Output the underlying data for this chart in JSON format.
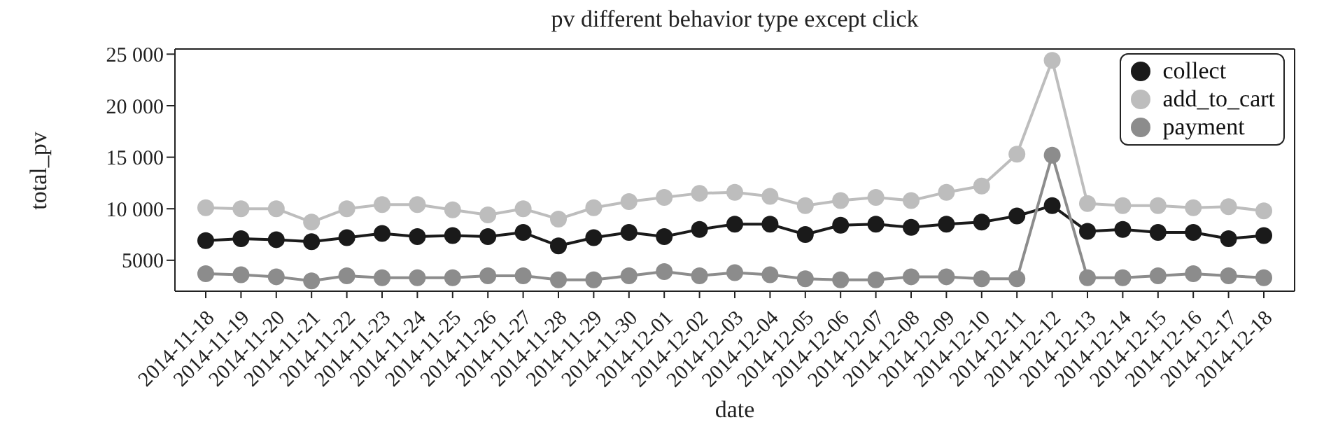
{
  "chart_data": {
    "type": "line",
    "title": "pv different behavior type except click",
    "xlabel": "date",
    "ylabel": "total_pv",
    "categories": [
      "2014-11-18",
      "2014-11-19",
      "2014-11-20",
      "2014-11-21",
      "2014-11-22",
      "2014-11-23",
      "2014-11-24",
      "2014-11-25",
      "2014-11-26",
      "2014-11-27",
      "2014-11-28",
      "2014-11-29",
      "2014-11-30",
      "2014-12-01",
      "2014-12-02",
      "2014-12-03",
      "2014-12-04",
      "2014-12-05",
      "2014-12-06",
      "2014-12-07",
      "2014-12-08",
      "2014-12-09",
      "2014-12-10",
      "2014-12-11",
      "2014-12-12",
      "2014-12-13",
      "2014-12-14",
      "2014-12-15",
      "2014-12-16",
      "2014-12-17",
      "2014-12-18"
    ],
    "series": [
      {
        "name": "collect",
        "color": "#1a1a1a",
        "values": [
          6900,
          7100,
          7000,
          6800,
          7200,
          7600,
          7300,
          7400,
          7300,
          7700,
          6400,
          7200,
          7700,
          7300,
          8000,
          8500,
          8500,
          7500,
          8400,
          8500,
          8200,
          8500,
          8700,
          9300,
          10300,
          7800,
          8000,
          7700,
          7700,
          7100,
          7400
        ]
      },
      {
        "name": "add_to_cart",
        "color": "#bdbdbd",
        "values": [
          10100,
          10000,
          10000,
          8700,
          10000,
          10400,
          10400,
          9900,
          9400,
          10000,
          9000,
          10100,
          10700,
          11100,
          11500,
          11600,
          11200,
          10300,
          10800,
          11100,
          10800,
          11600,
          12200,
          15300,
          24400,
          10500,
          10300,
          10300,
          10100,
          10200,
          9800
        ]
      },
      {
        "name": "payment",
        "color": "#8c8c8c",
        "values": [
          3700,
          3600,
          3400,
          3000,
          3500,
          3300,
          3300,
          3300,
          3500,
          3500,
          3100,
          3100,
          3500,
          3900,
          3500,
          3800,
          3600,
          3200,
          3100,
          3100,
          3400,
          3400,
          3200,
          3200,
          15200,
          3300,
          3300,
          3500,
          3700,
          3500,
          3300
        ]
      }
    ],
    "ylim": [
      2000,
      25500
    ],
    "yticks": [
      {
        "value": 5000,
        "label": "5000"
      },
      {
        "value": 10000,
        "label": "10 000"
      },
      {
        "value": 15000,
        "label": "15 000"
      },
      {
        "value": 20000,
        "label": "20 000"
      },
      {
        "value": 25000,
        "label": "25 000"
      }
    ],
    "grid": false,
    "legend": "top right",
    "marker": "circle",
    "line_style": "solid"
  }
}
